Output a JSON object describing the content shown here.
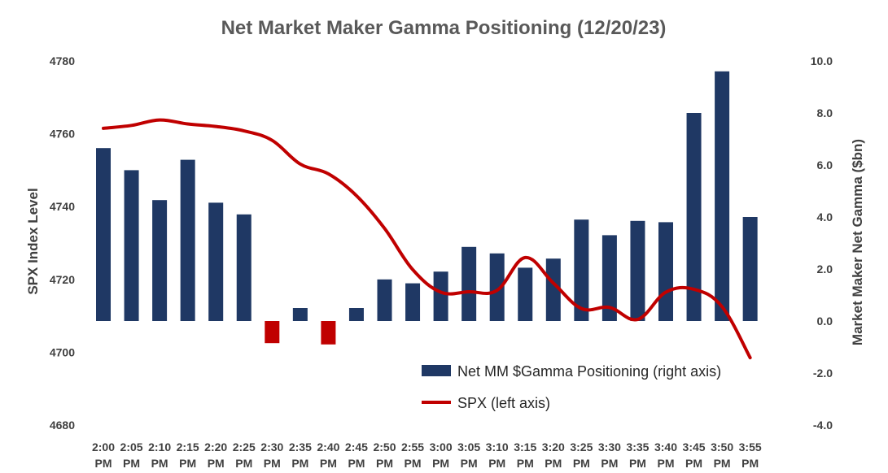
{
  "chart_data": {
    "type": "bar+line",
    "title": "Net Market Maker Gamma Positioning (12/20/23)",
    "categories": [
      "2:00 PM",
      "2:05 PM",
      "2:10 PM",
      "2:15 PM",
      "2:20 PM",
      "2:25 PM",
      "2:30 PM",
      "2:35 PM",
      "2:40 PM",
      "2:45 PM",
      "2:50 PM",
      "2:55 PM",
      "3:00 PM",
      "3:05 PM",
      "3:10 PM",
      "3:15 PM",
      "3:20 PM",
      "3:25 PM",
      "3:30 PM",
      "3:35 PM",
      "3:40 PM",
      "3:45 PM",
      "3:50 PM",
      "3:55 PM"
    ],
    "category_lines": [
      [
        "2:00",
        "PM"
      ],
      [
        "2:05",
        "PM"
      ],
      [
        "2:10",
        "PM"
      ],
      [
        "2:15",
        "PM"
      ],
      [
        "2:20",
        "PM"
      ],
      [
        "2:25",
        "PM"
      ],
      [
        "2:30",
        "PM"
      ],
      [
        "2:35",
        "PM"
      ],
      [
        "2:40",
        "PM"
      ],
      [
        "2:45",
        "PM"
      ],
      [
        "2:50",
        "PM"
      ],
      [
        "2:55",
        "PM"
      ],
      [
        "3:00",
        "PM"
      ],
      [
        "3:05",
        "PM"
      ],
      [
        "3:10",
        "PM"
      ],
      [
        "3:15",
        "PM"
      ],
      [
        "3:20",
        "PM"
      ],
      [
        "3:25",
        "PM"
      ],
      [
        "3:30",
        "PM"
      ],
      [
        "3:35",
        "PM"
      ],
      [
        "3:40",
        "PM"
      ],
      [
        "3:45",
        "PM"
      ],
      [
        "3:50",
        "PM"
      ],
      [
        "3:55",
        "PM"
      ]
    ],
    "series": [
      {
        "name": "Net MM $Gamma Positioning (right axis)",
        "kind": "bar",
        "axis": "right",
        "color_positive": "#1F3864",
        "color_negative": "#C00000",
        "values": [
          6.65,
          5.8,
          4.65,
          6.2,
          4.55,
          4.1,
          -0.85,
          0.5,
          -0.9,
          0.5,
          1.6,
          1.45,
          1.9,
          2.85,
          2.6,
          2.05,
          2.4,
          3.9,
          3.3,
          3.85,
          3.8,
          8.0,
          9.6,
          4.0
        ]
      },
      {
        "name": "SPX (left axis)",
        "kind": "line",
        "axis": "left",
        "color": "#C00000",
        "values": [
          4761.5,
          4762.3,
          4763.8,
          4762.7,
          4762.0,
          4760.8,
          4758.2,
          4751.7,
          4749.0,
          4743.0,
          4734.0,
          4722.7,
          4716.5,
          4716.6,
          4717.0,
          4726.0,
          4719.0,
          4712.0,
          4712.3,
          4709.0,
          4716.5,
          4717.3,
          4712.5,
          4698.5
        ]
      }
    ],
    "ylabel_left": "SPX Index Level",
    "ylabel_right": "Market Maker Net Gamma ($bn)",
    "ylim_left": [
      4680,
      4780
    ],
    "ylim_right": [
      -4.0,
      10.0
    ],
    "yticks_left": [
      "4780",
      "4760",
      "4740",
      "4720",
      "4700",
      "4680"
    ],
    "yticks_right": [
      "10.0",
      "8.0",
      "6.0",
      "4.0",
      "2.0",
      "0.0",
      "-2.0",
      "-4.0"
    ],
    "grid": false,
    "legend_position": "bottom-right-inside"
  }
}
